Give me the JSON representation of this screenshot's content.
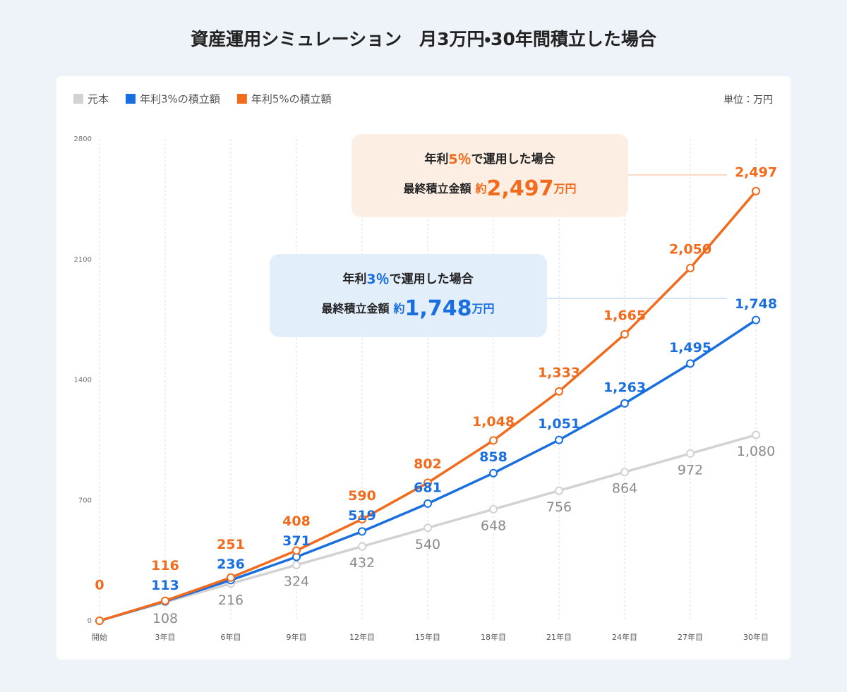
{
  "chart_data": {
    "type": "line",
    "title": "資産運用シミュレーション　月3万円・30年間積立した場合",
    "unit_label": "単位：万円",
    "categories": [
      "開始",
      "3年目",
      "6年目",
      "9年目",
      "12年目",
      "15年目",
      "18年目",
      "21年目",
      "24年目",
      "27年目",
      "30年目"
    ],
    "series": [
      {
        "name": "元本",
        "color": "#d2d2d2",
        "label_color": "#8a8a8a",
        "values": [
          0,
          108,
          216,
          324,
          432,
          540,
          648,
          756,
          864,
          972,
          1080
        ],
        "value_labels": [
          null,
          "108",
          "216",
          "324",
          "432",
          "540",
          "648",
          "756",
          "864",
          "972",
          "1,080"
        ]
      },
      {
        "name": "年利3%の積立額",
        "color": "#1a6fe0",
        "label_color": "#1a6fe0",
        "values": [
          0,
          113,
          236,
          371,
          519,
          681,
          858,
          1051,
          1263,
          1495,
          1748
        ],
        "value_labels": [
          null,
          "113",
          "236",
          "371",
          "519",
          "681",
          "858",
          "1,051",
          "1,263",
          "1,495",
          "1,748"
        ]
      },
      {
        "name": "年利5%の積立額",
        "color": "#f26a1b",
        "label_color": "#f26a1b",
        "values": [
          0,
          116,
          251,
          408,
          590,
          802,
          1048,
          1333,
          1665,
          2050,
          2497
        ],
        "value_labels": [
          "0",
          "116",
          "251",
          "408",
          "590",
          "802",
          "1,048",
          "1,333",
          "1,665",
          "2,050",
          "2,497"
        ]
      }
    ],
    "ylim": [
      0,
      2800
    ],
    "yticks": [
      0,
      700,
      1400,
      2100,
      2800
    ],
    "grid": true,
    "legend": "top-left",
    "annotations": [
      {
        "lead": "年利",
        "rate": "5％",
        "tail": "で運用した場合",
        "caption": "最終積立金額",
        "approx": "約",
        "amount": "2,497",
        "unit": "万円",
        "color": "#f26a1b"
      },
      {
        "lead": "年利",
        "rate": "3％",
        "tail": "で運用した場合",
        "caption": "最終積立金額",
        "approx": "約",
        "amount": "1,748",
        "unit": "万円",
        "color": "#1a6fe0"
      }
    ]
  }
}
